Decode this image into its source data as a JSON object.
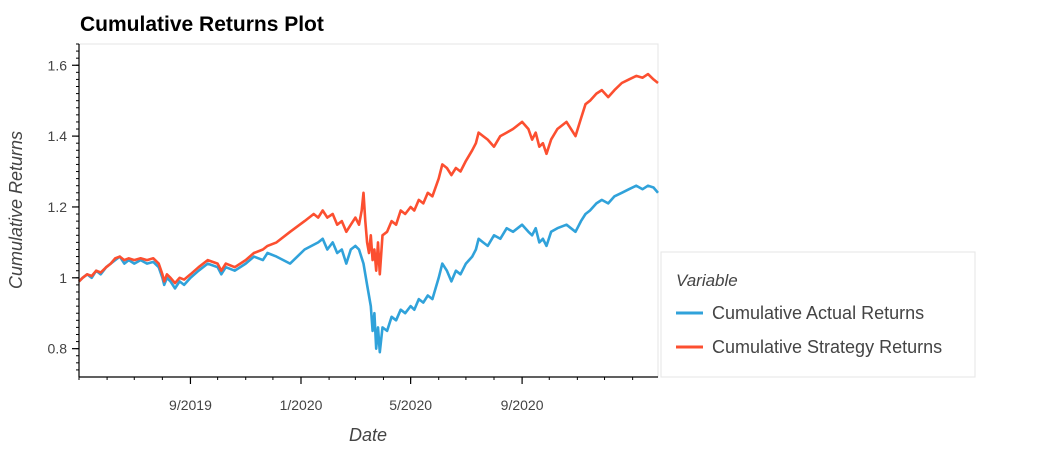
{
  "chart_data": {
    "type": "line",
    "title": "Cumulative Returns Plot",
    "xlabel": "Date",
    "ylabel": "Cumulative Returns",
    "xlim": [
      "2019-05-01",
      "2021-01-29"
    ],
    "ylim": [
      0.72,
      1.66
    ],
    "x_ticks": [
      {
        "date": "2019-09-01",
        "label": "9/2019"
      },
      {
        "date": "2020-01-01",
        "label": "1/2020"
      },
      {
        "date": "2020-05-01",
        "label": "5/2020"
      },
      {
        "date": "2020-09-01",
        "label": "9/2020"
      }
    ],
    "y_ticks": [
      {
        "value": 0.8,
        "label": "0.8"
      },
      {
        "value": 1.0,
        "label": "1"
      },
      {
        "value": 1.2,
        "label": "1.2"
      },
      {
        "value": 1.4,
        "label": "1.4"
      },
      {
        "value": 1.6,
        "label": "1.6"
      }
    ],
    "grid": false,
    "legend": {
      "title": "Variable",
      "placement": "right"
    },
    "series": [
      {
        "name": "Cumulative Actual Returns",
        "color": "#30a2da",
        "points": [
          [
            "2019-05-01",
            0.99
          ],
          [
            "2019-05-05",
            1.0
          ],
          [
            "2019-05-10",
            1.01
          ],
          [
            "2019-05-15",
            1.0
          ],
          [
            "2019-05-20",
            1.02
          ],
          [
            "2019-05-25",
            1.01
          ],
          [
            "2019-05-31",
            1.03
          ],
          [
            "2019-06-05",
            1.04
          ],
          [
            "2019-06-10",
            1.05
          ],
          [
            "2019-06-15",
            1.06
          ],
          [
            "2019-06-20",
            1.04
          ],
          [
            "2019-06-25",
            1.05
          ],
          [
            "2019-07-01",
            1.04
          ],
          [
            "2019-07-08",
            1.05
          ],
          [
            "2019-07-15",
            1.04
          ],
          [
            "2019-07-22",
            1.045
          ],
          [
            "2019-07-28",
            1.03
          ],
          [
            "2019-08-01",
            1.0
          ],
          [
            "2019-08-03",
            0.98
          ],
          [
            "2019-08-06",
            1.0
          ],
          [
            "2019-08-10",
            0.99
          ],
          [
            "2019-08-15",
            0.97
          ],
          [
            "2019-08-20",
            0.99
          ],
          [
            "2019-08-25",
            0.98
          ],
          [
            "2019-09-01",
            1.0
          ],
          [
            "2019-09-10",
            1.02
          ],
          [
            "2019-09-20",
            1.04
          ],
          [
            "2019-10-01",
            1.03
          ],
          [
            "2019-10-05",
            1.01
          ],
          [
            "2019-10-10",
            1.03
          ],
          [
            "2019-10-20",
            1.02
          ],
          [
            "2019-11-01",
            1.04
          ],
          [
            "2019-11-10",
            1.06
          ],
          [
            "2019-11-20",
            1.05
          ],
          [
            "2019-11-25",
            1.07
          ],
          [
            "2019-12-05",
            1.06
          ],
          [
            "2019-12-20",
            1.04
          ],
          [
            "2020-01-05",
            1.08
          ],
          [
            "2020-01-20",
            1.1
          ],
          [
            "2020-01-25",
            1.11
          ],
          [
            "2020-01-30",
            1.08
          ],
          [
            "2020-02-05",
            1.1
          ],
          [
            "2020-02-10",
            1.07
          ],
          [
            "2020-02-15",
            1.08
          ],
          [
            "2020-02-20",
            1.04
          ],
          [
            "2020-02-25",
            1.08
          ],
          [
            "2020-03-01",
            1.09
          ],
          [
            "2020-03-05",
            1.08
          ],
          [
            "2020-03-10",
            1.04
          ],
          [
            "2020-03-14",
            0.98
          ],
          [
            "2020-03-18",
            0.92
          ],
          [
            "2020-03-20",
            0.85
          ],
          [
            "2020-03-22",
            0.9
          ],
          [
            "2020-03-24",
            0.8
          ],
          [
            "2020-03-26",
            0.86
          ],
          [
            "2020-03-28",
            0.79
          ],
          [
            "2020-03-31",
            0.86
          ],
          [
            "2020-04-05",
            0.85
          ],
          [
            "2020-04-10",
            0.89
          ],
          [
            "2020-04-15",
            0.88
          ],
          [
            "2020-04-20",
            0.91
          ],
          [
            "2020-04-25",
            0.9
          ],
          [
            "2020-05-01",
            0.92
          ],
          [
            "2020-05-05",
            0.91
          ],
          [
            "2020-05-10",
            0.94
          ],
          [
            "2020-05-15",
            0.93
          ],
          [
            "2020-05-20",
            0.95
          ],
          [
            "2020-05-25",
            0.94
          ],
          [
            "2020-06-01",
            1.0
          ],
          [
            "2020-06-05",
            1.04
          ],
          [
            "2020-06-10",
            1.02
          ],
          [
            "2020-06-15",
            0.99
          ],
          [
            "2020-06-20",
            1.02
          ],
          [
            "2020-06-25",
            1.01
          ],
          [
            "2020-07-01",
            1.04
          ],
          [
            "2020-07-08",
            1.06
          ],
          [
            "2020-07-12",
            1.08
          ],
          [
            "2020-07-15",
            1.11
          ],
          [
            "2020-07-20",
            1.1
          ],
          [
            "2020-07-25",
            1.09
          ],
          [
            "2020-08-01",
            1.12
          ],
          [
            "2020-08-08",
            1.11
          ],
          [
            "2020-08-15",
            1.14
          ],
          [
            "2020-08-22",
            1.13
          ],
          [
            "2020-09-01",
            1.15
          ],
          [
            "2020-09-08",
            1.13
          ],
          [
            "2020-09-12",
            1.12
          ],
          [
            "2020-09-16",
            1.14
          ],
          [
            "2020-09-20",
            1.1
          ],
          [
            "2020-09-24",
            1.11
          ],
          [
            "2020-09-28",
            1.09
          ],
          [
            "2020-10-03",
            1.13
          ],
          [
            "2020-10-10",
            1.14
          ],
          [
            "2020-10-20",
            1.15
          ],
          [
            "2020-10-30",
            1.13
          ],
          [
            "2020-11-05",
            1.16
          ],
          [
            "2020-11-10",
            1.18
          ],
          [
            "2020-11-15",
            1.19
          ],
          [
            "2020-11-22",
            1.21
          ],
          [
            "2020-11-28",
            1.22
          ],
          [
            "2020-12-05",
            1.21
          ],
          [
            "2020-12-12",
            1.23
          ],
          [
            "2020-12-20",
            1.24
          ],
          [
            "2020-12-28",
            1.25
          ],
          [
            "2021-01-05",
            1.26
          ],
          [
            "2021-01-12",
            1.25
          ],
          [
            "2021-01-18",
            1.26
          ],
          [
            "2021-01-24",
            1.255
          ],
          [
            "2021-01-29",
            1.24
          ]
        ]
      },
      {
        "name": "Cumulative Strategy Returns",
        "color": "#fc4f30",
        "points": [
          [
            "2019-05-01",
            0.99
          ],
          [
            "2019-05-05",
            1.0
          ],
          [
            "2019-05-10",
            1.01
          ],
          [
            "2019-05-15",
            1.005
          ],
          [
            "2019-05-20",
            1.02
          ],
          [
            "2019-05-25",
            1.015
          ],
          [
            "2019-05-31",
            1.03
          ],
          [
            "2019-06-05",
            1.04
          ],
          [
            "2019-06-10",
            1.055
          ],
          [
            "2019-06-15",
            1.06
          ],
          [
            "2019-06-20",
            1.05
          ],
          [
            "2019-06-25",
            1.055
          ],
          [
            "2019-07-01",
            1.05
          ],
          [
            "2019-07-08",
            1.055
          ],
          [
            "2019-07-15",
            1.05
          ],
          [
            "2019-07-22",
            1.055
          ],
          [
            "2019-07-28",
            1.04
          ],
          [
            "2019-08-01",
            1.01
          ],
          [
            "2019-08-03",
            0.99
          ],
          [
            "2019-08-06",
            1.01
          ],
          [
            "2019-08-10",
            1.0
          ],
          [
            "2019-08-15",
            0.985
          ],
          [
            "2019-08-20",
            1.0
          ],
          [
            "2019-08-25",
            0.995
          ],
          [
            "2019-09-01",
            1.01
          ],
          [
            "2019-09-10",
            1.03
          ],
          [
            "2019-09-20",
            1.05
          ],
          [
            "2019-10-01",
            1.04
          ],
          [
            "2019-10-05",
            1.02
          ],
          [
            "2019-10-10",
            1.04
          ],
          [
            "2019-10-20",
            1.03
          ],
          [
            "2019-11-01",
            1.05
          ],
          [
            "2019-11-10",
            1.07
          ],
          [
            "2019-11-20",
            1.08
          ],
          [
            "2019-11-25",
            1.09
          ],
          [
            "2019-12-05",
            1.1
          ],
          [
            "2019-12-20",
            1.13
          ],
          [
            "2020-01-05",
            1.16
          ],
          [
            "2020-01-15",
            1.18
          ],
          [
            "2020-01-20",
            1.17
          ],
          [
            "2020-01-25",
            1.19
          ],
          [
            "2020-01-30",
            1.17
          ],
          [
            "2020-02-05",
            1.18
          ],
          [
            "2020-02-10",
            1.15
          ],
          [
            "2020-02-15",
            1.16
          ],
          [
            "2020-02-20",
            1.13
          ],
          [
            "2020-02-25",
            1.15
          ],
          [
            "2020-03-01",
            1.17
          ],
          [
            "2020-03-05",
            1.15
          ],
          [
            "2020-03-08",
            1.19
          ],
          [
            "2020-03-10",
            1.24
          ],
          [
            "2020-03-12",
            1.16
          ],
          [
            "2020-03-14",
            1.1
          ],
          [
            "2020-03-16",
            1.07
          ],
          [
            "2020-03-18",
            1.12
          ],
          [
            "2020-03-20",
            1.05
          ],
          [
            "2020-03-22",
            1.08
          ],
          [
            "2020-03-24",
            1.02
          ],
          [
            "2020-03-26",
            1.1
          ],
          [
            "2020-03-28",
            1.01
          ],
          [
            "2020-03-31",
            1.12
          ],
          [
            "2020-04-05",
            1.13
          ],
          [
            "2020-04-10",
            1.16
          ],
          [
            "2020-04-15",
            1.15
          ],
          [
            "2020-04-20",
            1.19
          ],
          [
            "2020-04-25",
            1.18
          ],
          [
            "2020-05-01",
            1.2
          ],
          [
            "2020-05-05",
            1.19
          ],
          [
            "2020-05-10",
            1.22
          ],
          [
            "2020-05-15",
            1.21
          ],
          [
            "2020-05-20",
            1.24
          ],
          [
            "2020-05-25",
            1.23
          ],
          [
            "2020-06-01",
            1.28
          ],
          [
            "2020-06-05",
            1.32
          ],
          [
            "2020-06-10",
            1.31
          ],
          [
            "2020-06-15",
            1.29
          ],
          [
            "2020-06-20",
            1.31
          ],
          [
            "2020-06-25",
            1.3
          ],
          [
            "2020-07-01",
            1.33
          ],
          [
            "2020-07-08",
            1.36
          ],
          [
            "2020-07-12",
            1.38
          ],
          [
            "2020-07-15",
            1.41
          ],
          [
            "2020-07-20",
            1.4
          ],
          [
            "2020-07-25",
            1.39
          ],
          [
            "2020-08-01",
            1.37
          ],
          [
            "2020-08-08",
            1.4
          ],
          [
            "2020-08-15",
            1.41
          ],
          [
            "2020-08-22",
            1.42
          ],
          [
            "2020-09-01",
            1.44
          ],
          [
            "2020-09-08",
            1.42
          ],
          [
            "2020-09-12",
            1.39
          ],
          [
            "2020-09-16",
            1.41
          ],
          [
            "2020-09-20",
            1.37
          ],
          [
            "2020-09-24",
            1.38
          ],
          [
            "2020-09-28",
            1.35
          ],
          [
            "2020-10-03",
            1.39
          ],
          [
            "2020-10-10",
            1.42
          ],
          [
            "2020-10-20",
            1.44
          ],
          [
            "2020-10-30",
            1.4
          ],
          [
            "2020-11-05",
            1.45
          ],
          [
            "2020-11-10",
            1.49
          ],
          [
            "2020-11-15",
            1.5
          ],
          [
            "2020-11-22",
            1.52
          ],
          [
            "2020-11-28",
            1.53
          ],
          [
            "2020-12-05",
            1.51
          ],
          [
            "2020-12-12",
            1.53
          ],
          [
            "2020-12-20",
            1.55
          ],
          [
            "2020-12-28",
            1.56
          ],
          [
            "2021-01-05",
            1.57
          ],
          [
            "2021-01-12",
            1.565
          ],
          [
            "2021-01-18",
            1.575
          ],
          [
            "2021-01-24",
            1.56
          ],
          [
            "2021-01-29",
            1.55
          ]
        ]
      }
    ]
  }
}
